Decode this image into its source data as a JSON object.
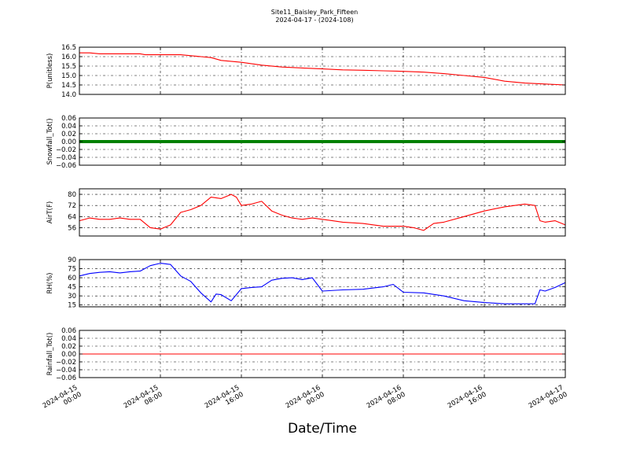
{
  "figure": {
    "title_line1": "Site11_Baisley_Park_Fifteen",
    "title_line2": "2024-04-17 - (2024-108)",
    "xlabel": "Date/Time"
  },
  "chart_data": {
    "type": "line",
    "x_axis": {
      "range": [
        "2024-04-15 00:00",
        "2024-04-17 00:00"
      ],
      "ticks": [
        {
          "value": "2024-04-15 00:00",
          "line1": "2024-04-15",
          "line2": "00:00"
        },
        {
          "value": "2024-04-15 08:00",
          "line1": "2024-04-15",
          "line2": "08:00"
        },
        {
          "value": "2024-04-15 16:00",
          "line1": "2024-04-15",
          "line2": "16:00"
        },
        {
          "value": "2024-04-16 00:00",
          "line1": "2024-04-16",
          "line2": "00:00"
        },
        {
          "value": "2024-04-16 08:00",
          "line1": "2024-04-16",
          "line2": "08:00"
        },
        {
          "value": "2024-04-16 16:00",
          "line1": "2024-04-16",
          "line2": "16:00"
        },
        {
          "value": "2024-04-17 00:00",
          "line1": "2024-04-17",
          "line2": "00:00"
        }
      ],
      "grid": true
    },
    "panels": [
      {
        "ylabel": "P(unitless)",
        "ylim": [
          14.0,
          16.5
        ],
        "yticks": [
          14.0,
          14.5,
          15.0,
          15.5,
          16.0,
          16.5
        ],
        "ytick_labels": [
          "14.0",
          "14.5",
          "15.0",
          "15.5",
          "16.0",
          "16.5"
        ],
        "color": "#ff0000",
        "grid": true,
        "series": [
          {
            "x": "2024-04-15 00:00",
            "y": 16.2
          },
          {
            "x": "2024-04-15 01:00",
            "y": 16.2
          },
          {
            "x": "2024-04-15 02:00",
            "y": 16.15
          },
          {
            "x": "2024-04-15 04:00",
            "y": 16.15
          },
          {
            "x": "2024-04-15 06:00",
            "y": 16.15
          },
          {
            "x": "2024-04-15 06:30",
            "y": 16.1
          },
          {
            "x": "2024-04-15 08:00",
            "y": 16.1
          },
          {
            "x": "2024-04-15 10:00",
            "y": 16.1
          },
          {
            "x": "2024-04-15 11:00",
            "y": 16.05
          },
          {
            "x": "2024-04-15 12:00",
            "y": 16.0
          },
          {
            "x": "2024-04-15 13:00",
            "y": 15.95
          },
          {
            "x": "2024-04-15 14:00",
            "y": 15.8
          },
          {
            "x": "2024-04-15 16:00",
            "y": 15.7
          },
          {
            "x": "2024-04-15 18:00",
            "y": 15.55
          },
          {
            "x": "2024-04-15 20:00",
            "y": 15.45
          },
          {
            "x": "2024-04-15 22:00",
            "y": 15.4
          },
          {
            "x": "2024-04-16 00:00",
            "y": 15.35
          },
          {
            "x": "2024-04-16 02:00",
            "y": 15.3
          },
          {
            "x": "2024-04-16 04:00",
            "y": 15.28
          },
          {
            "x": "2024-04-16 06:00",
            "y": 15.25
          },
          {
            "x": "2024-04-16 08:00",
            "y": 15.22
          },
          {
            "x": "2024-04-16 10:00",
            "y": 15.18
          },
          {
            "x": "2024-04-16 12:00",
            "y": 15.1
          },
          {
            "x": "2024-04-16 14:00",
            "y": 15.0
          },
          {
            "x": "2024-04-16 16:00",
            "y": 14.9
          },
          {
            "x": "2024-04-16 18:00",
            "y": 14.7
          },
          {
            "x": "2024-04-16 20:00",
            "y": 14.6
          },
          {
            "x": "2024-04-16 22:00",
            "y": 14.55
          },
          {
            "x": "2024-04-17 00:00",
            "y": 14.5
          }
        ]
      },
      {
        "ylabel": "Snowfall_Tot()",
        "ylim": [
          -0.06,
          0.06
        ],
        "yticks": [
          -0.06,
          -0.04,
          -0.02,
          0.0,
          0.02,
          0.04,
          0.06
        ],
        "ytick_labels": [
          "−0.06",
          "−0.04",
          "−0.02",
          "0.00",
          "0.02",
          "0.04",
          "0.06"
        ],
        "color": "#008000",
        "grid": true,
        "constant_value": 0.0,
        "series": [
          {
            "x": "2024-04-15 00:00",
            "y": 0.0
          },
          {
            "x": "2024-04-17 00:00",
            "y": 0.0
          }
        ]
      },
      {
        "ylabel": "AirT(F)",
        "ylim": [
          50,
          84
        ],
        "yticks": [
          56,
          64,
          72,
          80
        ],
        "ytick_labels": [
          "56",
          "64",
          "72",
          "80"
        ],
        "color": "#ff0000",
        "grid": true,
        "series": [
          {
            "x": "2024-04-15 00:00",
            "y": 61
          },
          {
            "x": "2024-04-15 01:00",
            "y": 63
          },
          {
            "x": "2024-04-15 02:00",
            "y": 62
          },
          {
            "x": "2024-04-15 03:00",
            "y": 62
          },
          {
            "x": "2024-04-15 04:00",
            "y": 63
          },
          {
            "x": "2024-04-15 05:00",
            "y": 62
          },
          {
            "x": "2024-04-15 06:00",
            "y": 62
          },
          {
            "x": "2024-04-15 07:00",
            "y": 56
          },
          {
            "x": "2024-04-15 08:00",
            "y": 55
          },
          {
            "x": "2024-04-15 09:00",
            "y": 58
          },
          {
            "x": "2024-04-15 10:00",
            "y": 67
          },
          {
            "x": "2024-04-15 11:00",
            "y": 69
          },
          {
            "x": "2024-04-15 12:00",
            "y": 72
          },
          {
            "x": "2024-04-15 13:00",
            "y": 78
          },
          {
            "x": "2024-04-15 14:00",
            "y": 77
          },
          {
            "x": "2024-04-15 15:00",
            "y": 80
          },
          {
            "x": "2024-04-15 15:30",
            "y": 78
          },
          {
            "x": "2024-04-15 16:00",
            "y": 72
          },
          {
            "x": "2024-04-15 17:00",
            "y": 73
          },
          {
            "x": "2024-04-15 18:00",
            "y": 75
          },
          {
            "x": "2024-04-15 19:00",
            "y": 68
          },
          {
            "x": "2024-04-15 20:00",
            "y": 65
          },
          {
            "x": "2024-04-15 21:00",
            "y": 63
          },
          {
            "x": "2024-04-15 22:00",
            "y": 62
          },
          {
            "x": "2024-04-15 23:00",
            "y": 63
          },
          {
            "x": "2024-04-16 00:00",
            "y": 62
          },
          {
            "x": "2024-04-16 01:00",
            "y": 61
          },
          {
            "x": "2024-04-16 02:00",
            "y": 60
          },
          {
            "x": "2024-04-16 04:00",
            "y": 59
          },
          {
            "x": "2024-04-16 06:00",
            "y": 57
          },
          {
            "x": "2024-04-16 08:00",
            "y": 57
          },
          {
            "x": "2024-04-16 09:00",
            "y": 56
          },
          {
            "x": "2024-04-16 10:00",
            "y": 54
          },
          {
            "x": "2024-04-16 11:00",
            "y": 59
          },
          {
            "x": "2024-04-16 12:00",
            "y": 60
          },
          {
            "x": "2024-04-16 14:00",
            "y": 64
          },
          {
            "x": "2024-04-16 16:00",
            "y": 68
          },
          {
            "x": "2024-04-16 18:00",
            "y": 71
          },
          {
            "x": "2024-04-16 20:00",
            "y": 73
          },
          {
            "x": "2024-04-16 21:00",
            "y": 72
          },
          {
            "x": "2024-04-16 21:30",
            "y": 61
          },
          {
            "x": "2024-04-16 22:00",
            "y": 60
          },
          {
            "x": "2024-04-16 23:00",
            "y": 61
          },
          {
            "x": "2024-04-17 00:00",
            "y": 58
          }
        ]
      },
      {
        "ylabel": "RH(%)",
        "ylim": [
          12,
          90
        ],
        "yticks": [
          15,
          30,
          45,
          60,
          75,
          90
        ],
        "ytick_labels": [
          "15",
          "30",
          "45",
          "60",
          "75",
          "90"
        ],
        "color": "#0000ff",
        "grid": true,
        "series": [
          {
            "x": "2024-04-15 00:00",
            "y": 63
          },
          {
            "x": "2024-04-15 01:00",
            "y": 67
          },
          {
            "x": "2024-04-15 02:00",
            "y": 69
          },
          {
            "x": "2024-04-15 03:00",
            "y": 70
          },
          {
            "x": "2024-04-15 04:00",
            "y": 68
          },
          {
            "x": "2024-04-15 05:00",
            "y": 70
          },
          {
            "x": "2024-04-15 06:00",
            "y": 71
          },
          {
            "x": "2024-04-15 07:00",
            "y": 80
          },
          {
            "x": "2024-04-15 08:00",
            "y": 84
          },
          {
            "x": "2024-04-15 09:00",
            "y": 82
          },
          {
            "x": "2024-04-15 10:00",
            "y": 63
          },
          {
            "x": "2024-04-15 11:00",
            "y": 54
          },
          {
            "x": "2024-04-15 12:00",
            "y": 35
          },
          {
            "x": "2024-04-15 13:00",
            "y": 20
          },
          {
            "x": "2024-04-15 13:30",
            "y": 33
          },
          {
            "x": "2024-04-15 14:00",
            "y": 32
          },
          {
            "x": "2024-04-15 15:00",
            "y": 22
          },
          {
            "x": "2024-04-15 16:00",
            "y": 42
          },
          {
            "x": "2024-04-15 17:00",
            "y": 44
          },
          {
            "x": "2024-04-15 18:00",
            "y": 45
          },
          {
            "x": "2024-04-15 19:00",
            "y": 56
          },
          {
            "x": "2024-04-15 20:00",
            "y": 59
          },
          {
            "x": "2024-04-15 21:00",
            "y": 60
          },
          {
            "x": "2024-04-15 22:00",
            "y": 57
          },
          {
            "x": "2024-04-15 23:00",
            "y": 60
          },
          {
            "x": "2024-04-16 00:00",
            "y": 38
          },
          {
            "x": "2024-04-16 02:00",
            "y": 40
          },
          {
            "x": "2024-04-16 04:00",
            "y": 41
          },
          {
            "x": "2024-04-16 06:00",
            "y": 45
          },
          {
            "x": "2024-04-16 07:00",
            "y": 49
          },
          {
            "x": "2024-04-16 08:00",
            "y": 36
          },
          {
            "x": "2024-04-16 10:00",
            "y": 35
          },
          {
            "x": "2024-04-16 12:00",
            "y": 30
          },
          {
            "x": "2024-04-16 14:00",
            "y": 22
          },
          {
            "x": "2024-04-16 16:00",
            "y": 19
          },
          {
            "x": "2024-04-16 18:00",
            "y": 17
          },
          {
            "x": "2024-04-16 21:00",
            "y": 17
          },
          {
            "x": "2024-04-16 21:30",
            "y": 40
          },
          {
            "x": "2024-04-16 22:00",
            "y": 38
          },
          {
            "x": "2024-04-16 23:00",
            "y": 44
          },
          {
            "x": "2024-04-17 00:00",
            "y": 52
          }
        ]
      },
      {
        "ylabel": "Rainfall_Tot()",
        "ylim": [
          -0.06,
          0.06
        ],
        "yticks": [
          -0.06,
          -0.04,
          -0.02,
          0.0,
          0.02,
          0.04,
          0.06
        ],
        "ytick_labels": [
          "−0.06",
          "−0.04",
          "−0.02",
          "0.00",
          "0.02",
          "0.04",
          "0.06"
        ],
        "color": "#ff0000",
        "grid": true,
        "constant_value": 0.0,
        "series": [
          {
            "x": "2024-04-15 00:00",
            "y": 0.0
          },
          {
            "x": "2024-04-17 00:00",
            "y": 0.0
          }
        ]
      }
    ]
  }
}
